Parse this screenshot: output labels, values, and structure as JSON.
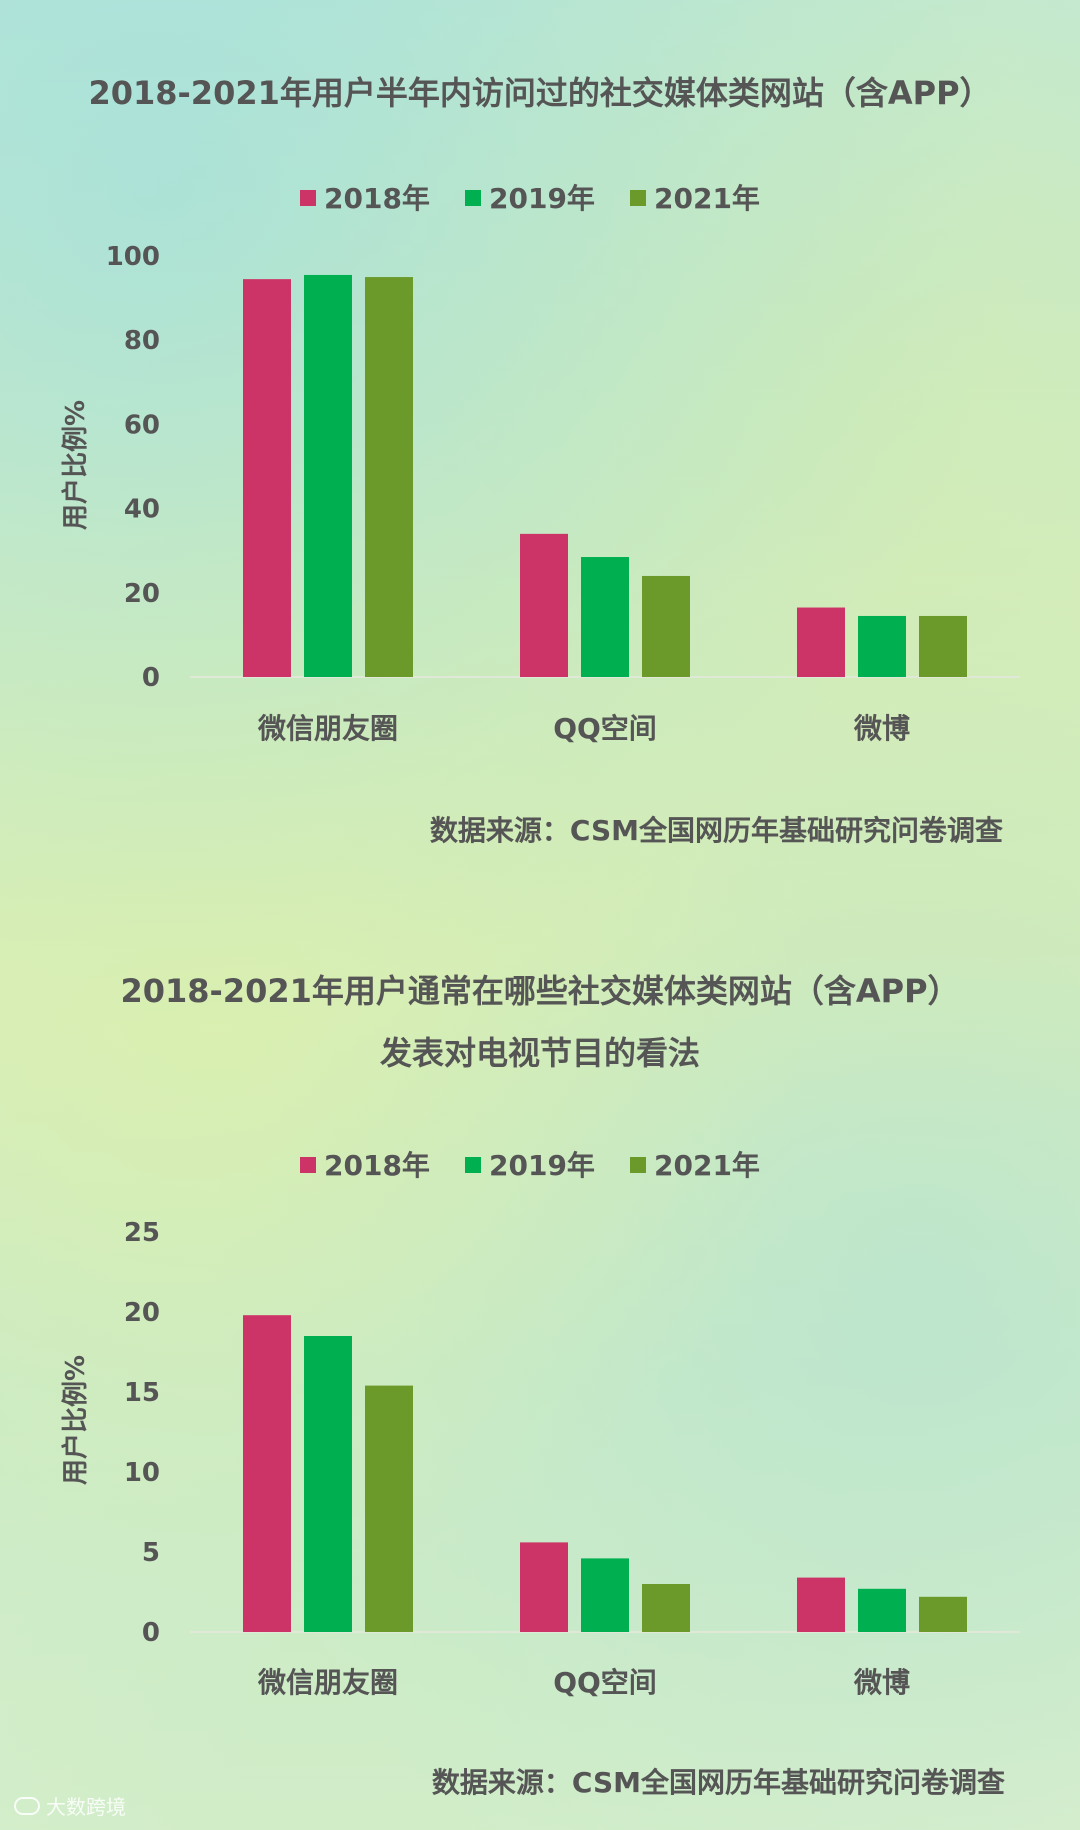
{
  "colors": {
    "series": [
      "#cc3366",
      "#00b050",
      "#6b9a2b"
    ],
    "axis": "#e0e8d8",
    "text": "#555555"
  },
  "chart_data": [
    {
      "type": "bar",
      "title": "2018-2021年用户半年内访问过的社交媒体类网站（含APP）",
      "ylabel": "用户比例%",
      "xlabel": "",
      "categories": [
        "微信朋友圈",
        "QQ空间",
        "微博"
      ],
      "series": [
        {
          "name": "2018年",
          "values": [
            94.5,
            34,
            16.5
          ]
        },
        {
          "name": "2019年",
          "values": [
            95.5,
            28.5,
            14.5
          ]
        },
        {
          "name": "2021年",
          "values": [
            95,
            24,
            14.5
          ]
        }
      ],
      "yticks": [
        0,
        20,
        40,
        60,
        80,
        100
      ],
      "ylim": [
        0,
        100
      ],
      "legend": "top",
      "grid": false,
      "source": "数据来源：CSM全国网历年基础研究问卷调查"
    },
    {
      "type": "bar",
      "title": "2018-2021年用户通常在哪些社交媒体类网站（含APP）",
      "subtitle": "发表对电视节目的看法",
      "ylabel": "用户比例%",
      "xlabel": "",
      "categories": [
        "微信朋友圈",
        "QQ空间",
        "微博"
      ],
      "series": [
        {
          "name": "2018年",
          "values": [
            19.8,
            5.6,
            3.4
          ]
        },
        {
          "name": "2019年",
          "values": [
            18.5,
            4.6,
            2.7
          ]
        },
        {
          "name": "2021年",
          "values": [
            15.4,
            3,
            2.2
          ]
        }
      ],
      "yticks": [
        0,
        5,
        10,
        15,
        20,
        25
      ],
      "ylim": [
        0,
        25
      ],
      "legend": "top",
      "grid": false,
      "source": "数据来源：CSM全国网历年基础研究问卷调查"
    }
  ],
  "watermark": "大数跨境"
}
